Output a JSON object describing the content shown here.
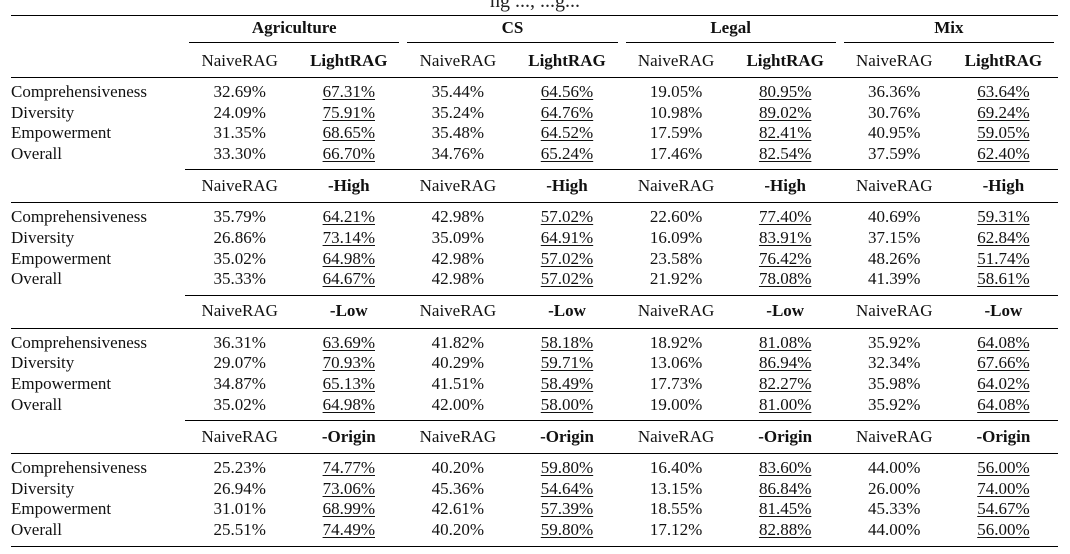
{
  "caption_fragment": "ng ...,  ...g...",
  "domains": [
    "Agriculture",
    "CS",
    "Legal",
    "Mix"
  ],
  "sections": [
    {
      "baseline": "NaiveRAG",
      "variant": "LightRAG",
      "rows": [
        {
          "metric": "Comprehensiveness",
          "values": [
            "32.69%",
            "67.31%",
            "35.44%",
            "64.56%",
            "19.05%",
            "80.95%",
            "36.36%",
            "63.64%"
          ]
        },
        {
          "metric": "Diversity",
          "values": [
            "24.09%",
            "75.91%",
            "35.24%",
            "64.76%",
            "10.98%",
            "89.02%",
            "30.76%",
            "69.24%"
          ]
        },
        {
          "metric": "Empowerment",
          "values": [
            "31.35%",
            "68.65%",
            "35.48%",
            "64.52%",
            "17.59%",
            "82.41%",
            "40.95%",
            "59.05%"
          ]
        },
        {
          "metric": "Overall",
          "values": [
            "33.30%",
            "66.70%",
            "34.76%",
            "65.24%",
            "17.46%",
            "82.54%",
            "37.59%",
            "62.40%"
          ]
        }
      ]
    },
    {
      "baseline": "NaiveRAG",
      "variant": "-High",
      "rows": [
        {
          "metric": "Comprehensiveness",
          "values": [
            "35.79%",
            "64.21%",
            "42.98%",
            "57.02%",
            "22.60%",
            "77.40%",
            "40.69%",
            "59.31%"
          ]
        },
        {
          "metric": "Diversity",
          "values": [
            "26.86%",
            "73.14%",
            "35.09%",
            "64.91%",
            "16.09%",
            "83.91%",
            "37.15%",
            "62.84%"
          ]
        },
        {
          "metric": "Empowerment",
          "values": [
            "35.02%",
            "64.98%",
            "42.98%",
            "57.02%",
            "23.58%",
            "76.42%",
            "48.26%",
            "51.74%"
          ]
        },
        {
          "metric": "Overall",
          "values": [
            "35.33%",
            "64.67%",
            "42.98%",
            "57.02%",
            "21.92%",
            "78.08%",
            "41.39%",
            "58.61%"
          ]
        }
      ]
    },
    {
      "baseline": "NaiveRAG",
      "variant": "-Low",
      "rows": [
        {
          "metric": "Comprehensiveness",
          "values": [
            "36.31%",
            "63.69%",
            "41.82%",
            "58.18%",
            "18.92%",
            "81.08%",
            "35.92%",
            "64.08%"
          ]
        },
        {
          "metric": "Diversity",
          "values": [
            "29.07%",
            "70.93%",
            "40.29%",
            "59.71%",
            "13.06%",
            "86.94%",
            "32.34%",
            "67.66%"
          ]
        },
        {
          "metric": "Empowerment",
          "values": [
            "34.87%",
            "65.13%",
            "41.51%",
            "58.49%",
            "17.73%",
            "82.27%",
            "35.98%",
            "64.02%"
          ]
        },
        {
          "metric": "Overall",
          "values": [
            "35.02%",
            "64.98%",
            "42.00%",
            "58.00%",
            "19.00%",
            "81.00%",
            "35.92%",
            "64.08%"
          ]
        }
      ]
    },
    {
      "baseline": "NaiveRAG",
      "variant": "-Origin",
      "rows": [
        {
          "metric": "Comprehensiveness",
          "values": [
            "25.23%",
            "74.77%",
            "40.20%",
            "59.80%",
            "16.40%",
            "83.60%",
            "44.00%",
            "56.00%"
          ]
        },
        {
          "metric": "Diversity",
          "values": [
            "26.94%",
            "73.06%",
            "45.36%",
            "54.64%",
            "13.15%",
            "86.84%",
            "26.00%",
            "74.00%"
          ]
        },
        {
          "metric": "Empowerment",
          "values": [
            "31.01%",
            "68.99%",
            "42.61%",
            "57.39%",
            "18.55%",
            "81.45%",
            "45.33%",
            "54.67%"
          ]
        },
        {
          "metric": "Overall",
          "values": [
            "25.51%",
            "74.49%",
            "40.20%",
            "59.80%",
            "17.12%",
            "82.88%",
            "44.00%",
            "56.00%"
          ]
        }
      ]
    }
  ]
}
